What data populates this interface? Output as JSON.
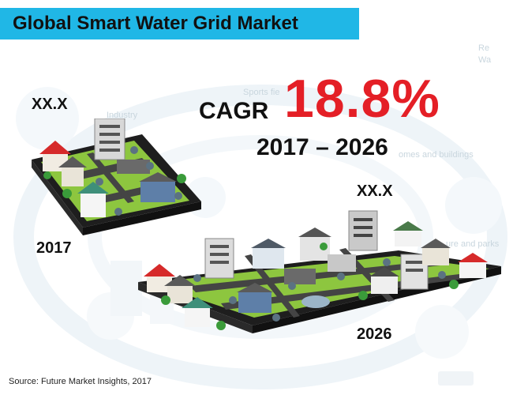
{
  "title": "Global Smart Water Grid Market",
  "chart_data": {
    "type": "bar",
    "categories": [
      "2017",
      "2026"
    ],
    "value_labels": [
      "XX.X",
      "XX.X"
    ],
    "cagr_label": "CAGR",
    "cagr_value": "18.8%",
    "period": "2017 – 2026",
    "source": "Source: Future Market Insights, 2017"
  },
  "background_text": [
    "Sports fie",
    "Industry",
    "omes and buildings",
    "ure and parks",
    "Re",
    "Wa"
  ],
  "colors": {
    "title_bar": "#20b7e6",
    "cagr_value": "#e41f26",
    "platform": "#1f1f1f",
    "grass": "#8dc63f"
  }
}
